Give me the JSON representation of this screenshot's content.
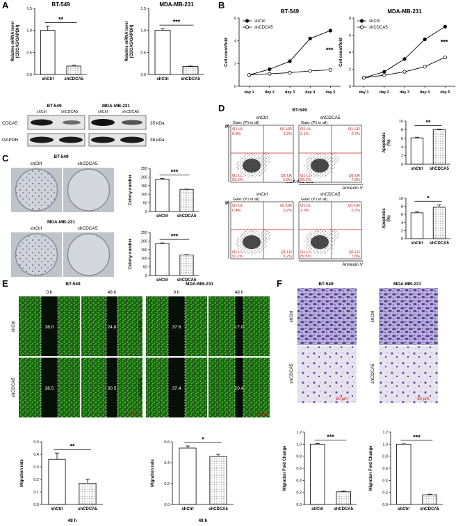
{
  "panels": {
    "A": {
      "letter": "A",
      "sig": "**",
      "sig2": "***",
      "blot": {
        "lines": [
          "BT-549",
          "MDA-MB-231"
        ],
        "rows": [
          {
            "name": "CDCA5",
            "kda": "35 kDa"
          },
          {
            "name": "GAPDH",
            "kda": "36 kDa"
          }
        ],
        "lanes": [
          "shCtrl",
          "shCDCA5",
          "shCtrl",
          "shCDCA5"
        ]
      }
    },
    "B": {
      "letter": "B",
      "sig": "***"
    },
    "C": {
      "letter": "C",
      "lines": [
        "BT-549",
        "MDA-MB-231"
      ],
      "cols": [
        "shCtrl",
        "shCDCA5"
      ],
      "sig": "***"
    },
    "D": {
      "letter": "D",
      "lines": [
        "BT-549",
        "MDA-MB-231"
      ],
      "cols": [
        "shCtrl",
        "shCDCA5"
      ],
      "gate": "Gate: (P1 in all)",
      "axis_x": "Annexin V",
      "axis_y": "PI",
      "flow": [
        {
          "ul": "0.8%",
          "ur": "0.2%",
          "ll": "93.2%",
          "lr": "5.8%"
        },
        {
          "ul": "2.1%",
          "ur": "0.7%",
          "ll": "89.2%",
          "lr": "7.8%"
        },
        {
          "ul": "0.4%",
          "ur": "0.2%",
          "ll": "93.2%",
          "lr": "6.2%"
        },
        {
          "ul": "2.0%",
          "ur": "0.7%",
          "ll": "89.5%",
          "lr": "7.8%"
        }
      ],
      "quad": {
        "ul": "Q1-UL",
        "ur": "Q1-UR",
        "ll": "Q1-LL",
        "lr": "Q1-LR"
      },
      "sig": [
        "**",
        "*"
      ]
    },
    "E": {
      "letter": "E",
      "lines": [
        "BT-549",
        "MDA-MB-231"
      ],
      "times": [
        "0 h",
        "48 h"
      ],
      "rows": [
        "shCtrl",
        "shCDCA5"
      ],
      "widths": [
        [
          "38.0",
          "24.8",
          "37.6",
          "17.0"
        ],
        [
          "38.5",
          "30.5",
          "37.4",
          "20.4"
        ]
      ],
      "scale": "50 μm",
      "sig": [
        "**",
        "*"
      ],
      "sub": "48 h"
    },
    "F": {
      "letter": "F",
      "lines": [
        "BT-549",
        "MDA-MB-231"
      ],
      "rows": [
        "shCtrl",
        "shCDCA5"
      ],
      "scale": "50 μm",
      "sig": "***"
    }
  },
  "chart_data": [
    {
      "id": "A-BT549",
      "type": "bar",
      "title": "BT-549",
      "ylabel": "Relative mRNA level (CDCA5/GAPDH)",
      "categories": [
        "shCtrl",
        "shCDCA5"
      ],
      "values": [
        1.0,
        0.19
      ],
      "errors": [
        0.1,
        0.02
      ],
      "ylim": [
        0,
        1.5
      ],
      "yticks": [
        0.0,
        0.5,
        1.0,
        1.5
      ],
      "significance": "**"
    },
    {
      "id": "A-MDA",
      "type": "bar",
      "title": "MDA-MB-231",
      "ylabel": "Relative mRNA level (CDCA5/GAPDH)",
      "categories": [
        "shCtrl",
        "shCDCA5"
      ],
      "values": [
        1.0,
        0.18
      ],
      "errors": [
        0.04,
        0.01
      ],
      "ylim": [
        0,
        1.5
      ],
      "yticks": [
        0.0,
        0.5,
        1.0,
        1.5
      ],
      "significance": "***"
    },
    {
      "id": "B-BT549",
      "type": "line",
      "title": "BT-549",
      "ylabel": "Cell count/fold",
      "x": [
        "day 1",
        "day 2",
        "day 3",
        "day 4",
        "day 5"
      ],
      "ylim": [
        0,
        6
      ],
      "yticks": [
        0,
        2,
        4,
        6
      ],
      "series": [
        {
          "name": "shCtrl",
          "values": [
            1.0,
            1.5,
            2.2,
            4.2,
            4.9
          ]
        },
        {
          "name": "shCDCA5",
          "values": [
            1.0,
            1.1,
            1.2,
            1.35,
            1.45
          ]
        }
      ],
      "significance": "***",
      "legend": "top-left"
    },
    {
      "id": "B-MDA",
      "type": "line",
      "title": "MDA-MB-231",
      "ylabel": "Cell count/fold",
      "x": [
        "day 1",
        "day 2",
        "day 3",
        "day 4",
        "day 5"
      ],
      "ylim": [
        0,
        8
      ],
      "yticks": [
        0,
        2,
        4,
        6,
        8
      ],
      "series": [
        {
          "name": "shCtrl",
          "values": [
            1.0,
            1.7,
            3.2,
            5.5,
            7.0
          ]
        },
        {
          "name": "shCDCA5",
          "values": [
            1.0,
            1.3,
            1.7,
            2.3,
            3.4
          ]
        }
      ],
      "significance": "***",
      "legend": "top-left"
    },
    {
      "id": "C-BT549",
      "type": "bar",
      "ylabel": "Colony number",
      "categories": [
        "shCtrl",
        "shCDCA5"
      ],
      "values": [
        187,
        128
      ],
      "errors": [
        4,
        2
      ],
      "ylim": [
        0,
        250
      ],
      "yticks": [
        0,
        50,
        100,
        150,
        200,
        250
      ],
      "significance": "***"
    },
    {
      "id": "C-MDA",
      "type": "bar",
      "ylabel": "Colony number",
      "categories": [
        "shCtrl",
        "shCDCA5"
      ],
      "values": [
        186,
        119
      ],
      "errors": [
        3,
        2
      ],
      "ylim": [
        0,
        250
      ],
      "yticks": [
        0,
        50,
        100,
        150,
        200,
        250
      ],
      "significance": "***"
    },
    {
      "id": "D-BT549",
      "type": "bar",
      "ylabel": "Apoptosis (%)",
      "categories": [
        "shCtrl",
        "shCDCA5"
      ],
      "values": [
        6.1,
        8.0
      ],
      "errors": [
        0.15,
        0.15
      ],
      "ylim": [
        0,
        10
      ],
      "yticks": [
        0,
        2,
        4,
        6,
        8,
        10
      ],
      "significance": "**"
    },
    {
      "id": "D-MDA",
      "type": "bar",
      "ylabel": "Apoptosis (%)",
      "categories": [
        "shCtrl",
        "shCDCA5"
      ],
      "values": [
        6.4,
        7.8
      ],
      "errors": [
        0.3,
        0.6
      ],
      "ylim": [
        0,
        10
      ],
      "yticks": [
        0,
        2,
        4,
        6,
        8,
        10
      ],
      "significance": "*"
    },
    {
      "id": "E-BT549",
      "type": "bar",
      "ylabel": "Migration rate",
      "xlabel": "48 h",
      "categories": [
        "shCtrl",
        "shCDCA5"
      ],
      "values": [
        0.36,
        0.17
      ],
      "errors": [
        0.05,
        0.03
      ],
      "ylim": [
        0,
        0.5
      ],
      "yticks": [
        0.0,
        0.1,
        0.2,
        0.3,
        0.4,
        0.5
      ],
      "significance": "**"
    },
    {
      "id": "E-MDA",
      "type": "bar",
      "ylabel": "Migration rate",
      "xlabel": "48 h",
      "categories": [
        "shCtrl",
        "shCDCA5"
      ],
      "values": [
        0.54,
        0.46
      ],
      "errors": [
        0.02,
        0.02
      ],
      "ylim": [
        0,
        0.6
      ],
      "yticks": [
        0.0,
        0.2,
        0.4,
        0.6
      ],
      "significance": "*"
    },
    {
      "id": "F-BT549",
      "type": "bar",
      "ylabel": "Migration Fold Change",
      "categories": [
        "shCtrl",
        "shCDCA5"
      ],
      "values": [
        1.0,
        0.21
      ],
      "errors": [
        0.01,
        0.01
      ],
      "ylim": [
        0,
        1.2
      ],
      "yticks": [
        0.0,
        0.2,
        0.4,
        0.6,
        0.8,
        1.0,
        1.2
      ],
      "significance": "***"
    },
    {
      "id": "F-MDA",
      "type": "bar",
      "ylabel": "Migration Fold Change",
      "categories": [
        "shCtrl",
        "shCDCA5"
      ],
      "values": [
        1.0,
        0.16
      ],
      "errors": [
        0.005,
        0.01
      ],
      "ylim": [
        0,
        1.2
      ],
      "yticks": [
        0.0,
        0.2,
        0.4,
        0.6,
        0.8,
        1.0,
        1.2
      ],
      "significance": "***"
    }
  ]
}
